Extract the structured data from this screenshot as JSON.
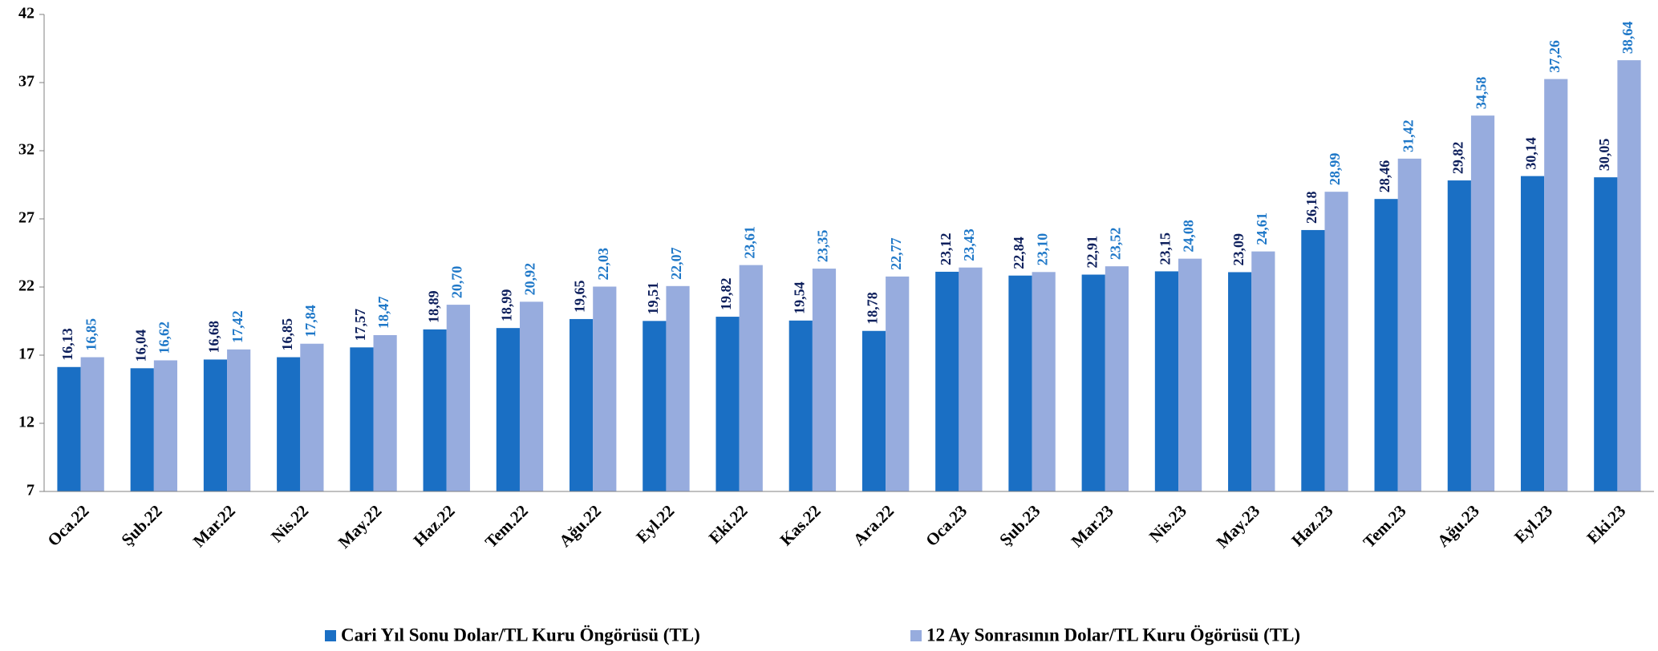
{
  "chart_data": {
    "type": "bar",
    "categories": [
      "Oca.22",
      "Şub.22",
      "Mar.22",
      "Nis.22",
      "May.22",
      "Haz.22",
      "Tem.22",
      "Ağu.22",
      "Eyl.22",
      "Eki.22",
      "Kas.22",
      "Ara.22",
      "Oca.23",
      "Şub.23",
      "Mar.23",
      "Nis.23",
      "May.23",
      "Haz.23",
      "Tem.23",
      "Ağu.23",
      "Eyl.23",
      "Eki.23"
    ],
    "series": [
      {
        "name": "Cari Yıl Sonu Dolar/TL Kuru Öngörüsü (TL)",
        "color": "#1a6fc4",
        "label_color": "#0d1f5c",
        "values": [
          16.13,
          16.04,
          16.68,
          16.85,
          17.57,
          18.89,
          18.99,
          19.65,
          19.51,
          19.82,
          19.54,
          18.78,
          23.12,
          22.84,
          22.91,
          23.15,
          23.09,
          26.18,
          28.46,
          29.82,
          30.14,
          30.05
        ],
        "value_labels": [
          "16,13",
          "16,04",
          "16,68",
          "16,85",
          "17,57",
          "18,89",
          "18,99",
          "19,65",
          "19,51",
          "19,82",
          "19,54",
          "18,78",
          "23,12",
          "22,84",
          "22,91",
          "23,15",
          "23,09",
          "26,18",
          "28,46",
          "29,82",
          "30,14",
          "30,05"
        ]
      },
      {
        "name": "12 Ay Sonrasının Dolar/TL Kuru Ögörüsü (TL)",
        "color": "#97acde",
        "label_color": "#1f78c8",
        "values": [
          16.85,
          16.62,
          17.42,
          17.84,
          18.47,
          20.7,
          20.92,
          22.03,
          22.07,
          23.61,
          23.35,
          22.77,
          23.43,
          23.1,
          23.52,
          24.08,
          24.61,
          28.99,
          31.42,
          34.58,
          37.26,
          38.64
        ],
        "value_labels": [
          "16,85",
          "16,62",
          "17,42",
          "17,84",
          "18,47",
          "20,70",
          "20,92",
          "22,03",
          "22,07",
          "23,61",
          "23,35",
          "22,77",
          "23,43",
          "23,10",
          "23,52",
          "24,08",
          "24,61",
          "28,99",
          "31,42",
          "34,58",
          "37,26",
          "38,64"
        ]
      }
    ],
    "ylim": [
      7,
      42
    ],
    "yticks": [
      7,
      12,
      17,
      22,
      27,
      32,
      37,
      42
    ],
    "legend": "bottom"
  }
}
